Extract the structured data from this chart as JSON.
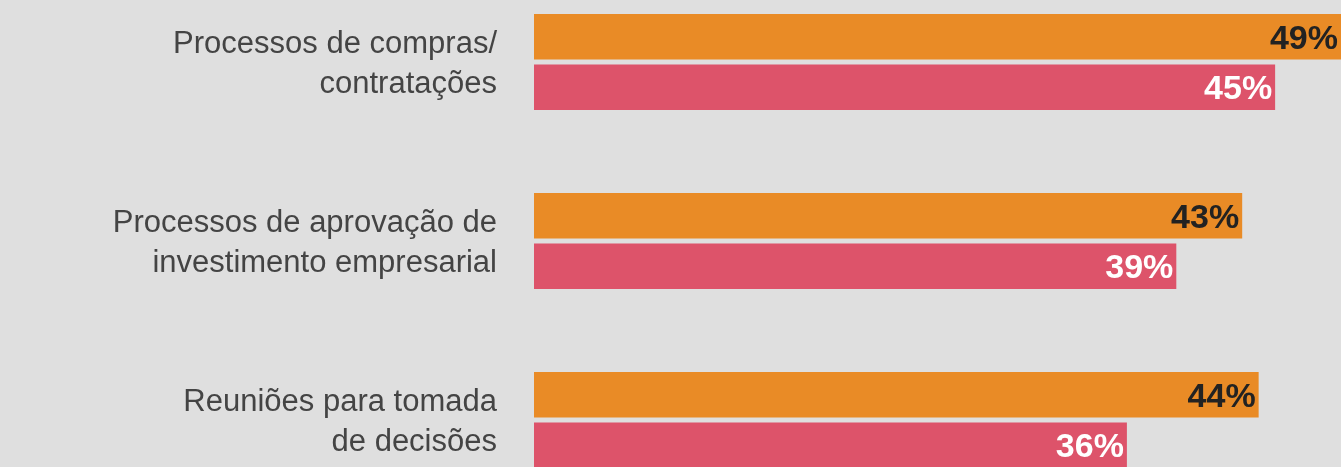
{
  "chart_data": {
    "type": "bar",
    "orientation": "horizontal",
    "categories": [
      "Processos de compras/\ncontratações",
      "Processos de aprovação de\ninvestimento empresarial",
      "Reuniões para tomada\nde decisões"
    ],
    "series": [
      {
        "color": "#e98b26",
        "values": [
          49,
          43,
          44
        ],
        "value_labels": [
          "49%",
          "43%",
          "44%"
        ]
      },
      {
        "color": "#dd536a",
        "values": [
          45,
          39,
          36
        ],
        "value_labels": [
          "45%",
          "39%",
          "36%"
        ]
      }
    ],
    "xlim": [
      0,
      49
    ],
    "tick_labels": "y"
  }
}
